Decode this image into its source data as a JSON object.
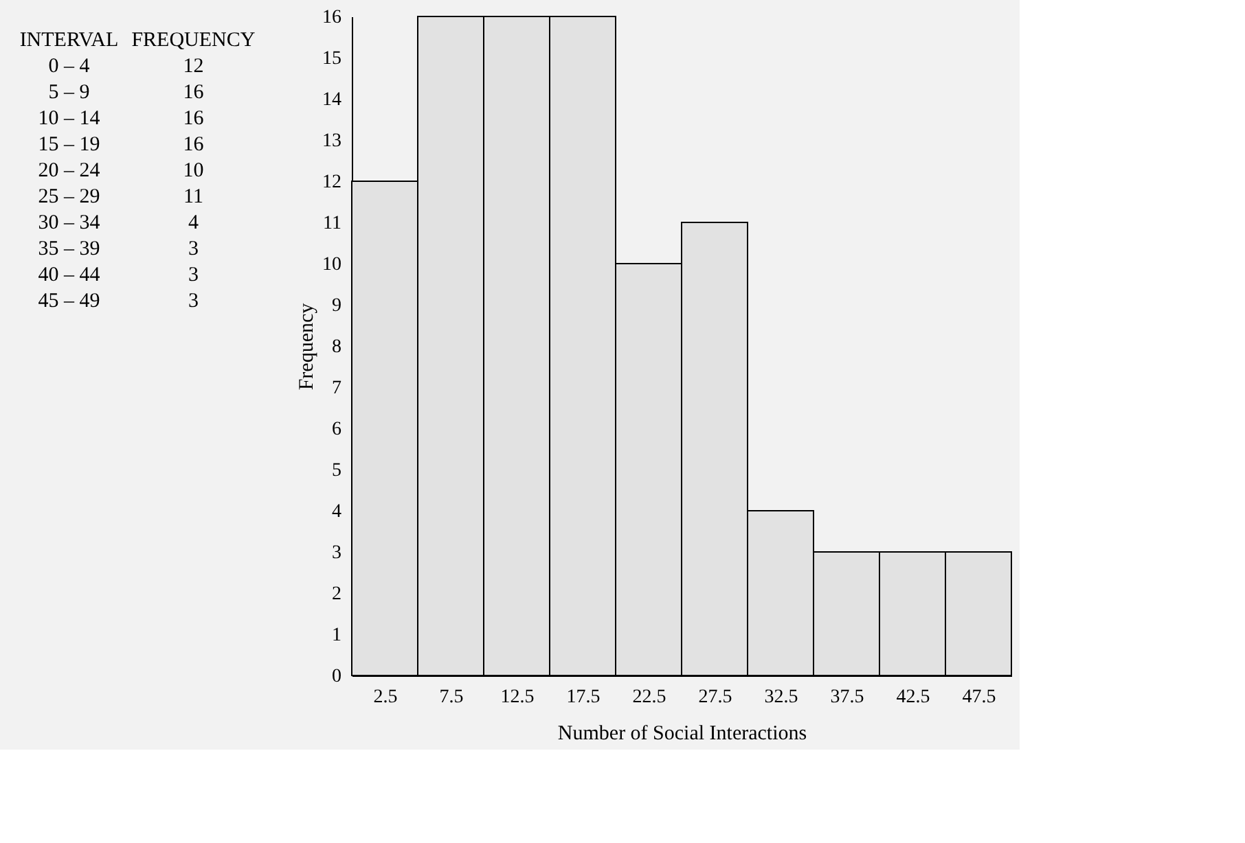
{
  "chart_data": [
    {
      "type": "other",
      "annotations": [
        "INTERVAL",
        "FREQUENCY",
        "0 – 4",
        "12",
        "5 – 9",
        "16",
        "10 – 14",
        "16",
        "15 – 19",
        "16",
        "20 – 24",
        "10",
        "25 – 29",
        "11",
        "30 – 34",
        "4",
        "35 – 39",
        "3",
        "40 – 44",
        "3",
        "45 – 49",
        "3"
      ]
    },
    {
      "type": "histogram",
      "xlabel": "Number of Social Interactions",
      "ylabel": "Frequency",
      "bins": [
        0,
        5,
        10,
        15,
        20,
        25,
        30,
        35,
        40,
        45,
        50
      ],
      "values": [
        12,
        16,
        16,
        16,
        10,
        11,
        4,
        3,
        3,
        3
      ],
      "color": "#e2e2e2",
      "xlim": [
        0,
        50
      ],
      "xticks": [
        2.5,
        7.5,
        12.5,
        17.5,
        22.5,
        27.5,
        32.5,
        37.5,
        42.5,
        47.5
      ],
      "ylim": [
        0,
        16
      ],
      "yticks": [
        0,
        1,
        2,
        3,
        4,
        5,
        6,
        7,
        8,
        9,
        10,
        11,
        12,
        13,
        14,
        15,
        16
      ],
      "grid": false
    }
  ]
}
